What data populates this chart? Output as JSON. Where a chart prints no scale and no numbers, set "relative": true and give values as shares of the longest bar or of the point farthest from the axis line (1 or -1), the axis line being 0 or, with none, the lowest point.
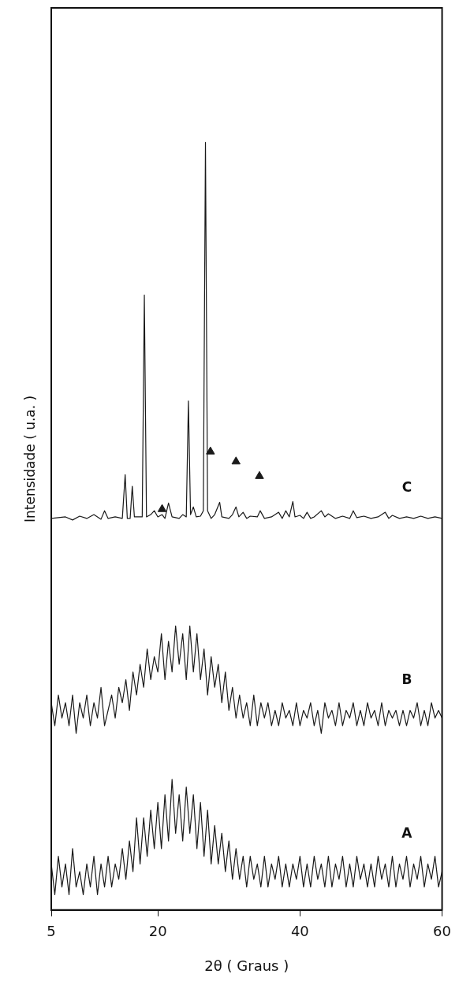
{
  "chart_data": {
    "type": "line",
    "xlabel": "2θ ( Graus )",
    "ylabel": "Intensidade ( u.a. )",
    "relative": true,
    "xlim": [
      5,
      60
    ],
    "xticks": [
      5,
      20,
      40,
      60
    ],
    "grid": false,
    "legend": false,
    "marker": "none",
    "line_style": "solid",
    "x": [
      5,
      5.5,
      6,
      6.5,
      7,
      7.5,
      8,
      8.5,
      9,
      9.5,
      10,
      10.5,
      11,
      11.5,
      12,
      12.5,
      13,
      13.5,
      14,
      14.5,
      15,
      15.5,
      16,
      16.5,
      17,
      17.5,
      18,
      18.5,
      19,
      19.5,
      20,
      20.5,
      21,
      21.5,
      22,
      22.5,
      23,
      23.5,
      24,
      24.5,
      25,
      25.5,
      26,
      26.5,
      27,
      27.5,
      28,
      28.5,
      29,
      29.5,
      30,
      30.5,
      31,
      31.5,
      32,
      32.5,
      33,
      33.5,
      34,
      34.5,
      35,
      35.5,
      36,
      36.5,
      37,
      37.5,
      38,
      38.5,
      39,
      39.5,
      40,
      40.5,
      41,
      41.5,
      42,
      42.5,
      43,
      43.5,
      44,
      44.5,
      45,
      45.5,
      46,
      46.5,
      47,
      47.5,
      48,
      48.5,
      49,
      49.5,
      50,
      50.5,
      51,
      51.5,
      52,
      52.5,
      53,
      53.5,
      54,
      54.5,
      55,
      55.5,
      56,
      56.5,
      57,
      57.5,
      58,
      58.5,
      59,
      59.5,
      60
    ],
    "series": [
      {
        "name": "A",
        "color": "#1a1a1a",
        "values": [
          0.06,
          0.02,
          0.07,
          0.03,
          0.06,
          0.02,
          0.08,
          0.03,
          0.05,
          0.02,
          0.06,
          0.03,
          0.07,
          0.02,
          0.06,
          0.03,
          0.07,
          0.03,
          0.06,
          0.04,
          0.08,
          0.04,
          0.09,
          0.05,
          0.12,
          0.06,
          0.12,
          0.07,
          0.13,
          0.08,
          0.14,
          0.08,
          0.15,
          0.09,
          0.17,
          0.1,
          0.15,
          0.09,
          0.16,
          0.1,
          0.15,
          0.08,
          0.14,
          0.07,
          0.13,
          0.06,
          0.11,
          0.06,
          0.1,
          0.05,
          0.09,
          0.04,
          0.08,
          0.04,
          0.07,
          0.03,
          0.07,
          0.04,
          0.06,
          0.03,
          0.07,
          0.03,
          0.06,
          0.04,
          0.07,
          0.03,
          0.06,
          0.03,
          0.06,
          0.04,
          0.07,
          0.03,
          0.06,
          0.03,
          0.07,
          0.04,
          0.06,
          0.03,
          0.07,
          0.03,
          0.06,
          0.04,
          0.07,
          0.03,
          0.06,
          0.03,
          0.07,
          0.04,
          0.06,
          0.03,
          0.06,
          0.03,
          0.07,
          0.04,
          0.06,
          0.03,
          0.07,
          0.03,
          0.06,
          0.04,
          0.07,
          0.03,
          0.06,
          0.04,
          0.07,
          0.03,
          0.06,
          0.04,
          0.07,
          0.03,
          0.05
        ]
      },
      {
        "name": "B",
        "color": "#1a1a1a",
        "values": [
          0.27,
          0.24,
          0.28,
          0.25,
          0.27,
          0.24,
          0.28,
          0.23,
          0.27,
          0.25,
          0.28,
          0.24,
          0.27,
          0.25,
          0.29,
          0.24,
          0.26,
          0.28,
          0.25,
          0.29,
          0.27,
          0.3,
          0.26,
          0.31,
          0.28,
          0.32,
          0.29,
          0.34,
          0.3,
          0.33,
          0.31,
          0.36,
          0.3,
          0.35,
          0.31,
          0.37,
          0.32,
          0.36,
          0.3,
          0.37,
          0.31,
          0.36,
          0.3,
          0.34,
          0.28,
          0.33,
          0.29,
          0.32,
          0.27,
          0.31,
          0.26,
          0.29,
          0.25,
          0.28,
          0.25,
          0.27,
          0.24,
          0.28,
          0.24,
          0.27,
          0.25,
          0.27,
          0.24,
          0.26,
          0.24,
          0.27,
          0.25,
          0.26,
          0.24,
          0.27,
          0.24,
          0.26,
          0.25,
          0.27,
          0.24,
          0.26,
          0.23,
          0.27,
          0.25,
          0.26,
          0.24,
          0.27,
          0.24,
          0.26,
          0.25,
          0.27,
          0.24,
          0.26,
          0.24,
          0.27,
          0.25,
          0.26,
          0.24,
          0.27,
          0.24,
          0.26,
          0.25,
          0.26,
          0.24,
          0.26,
          0.24,
          0.26,
          0.25,
          0.27,
          0.24,
          0.26,
          0.24,
          0.27,
          0.25,
          0.26,
          0.25
        ]
      },
      {
        "name": "C",
        "color": "#1a1a1a",
        "x": [
          5,
          7,
          8,
          9,
          10,
          11,
          12,
          12.5,
          13,
          14,
          15,
          15.4,
          15.7,
          16.1,
          16.4,
          16.7,
          17.8,
          18.1,
          18.4,
          19,
          19.5,
          20,
          20.6,
          21,
          21.5,
          22,
          23,
          23.5,
          24,
          24.3,
          24.6,
          25,
          25.4,
          26,
          26.4,
          26.7,
          27,
          27.5,
          28,
          28.7,
          29,
          30,
          30.5,
          31,
          31.4,
          32,
          32.5,
          33,
          34,
          34.4,
          35,
          36,
          37,
          37.5,
          38,
          38.5,
          39,
          39.3,
          40,
          40.5,
          41,
          41.5,
          42,
          43,
          43.5,
          44,
          45,
          46,
          47,
          47.5,
          48,
          49,
          50,
          51,
          52,
          52.5,
          53,
          54,
          55,
          56,
          57,
          58,
          59,
          60
        ],
        "values": [
          0.51,
          0.512,
          0.508,
          0.513,
          0.51,
          0.515,
          0.509,
          0.52,
          0.51,
          0.512,
          0.51,
          0.567,
          0.51,
          0.51,
          0.552,
          0.512,
          0.512,
          0.801,
          0.512,
          0.515,
          0.52,
          0.512,
          0.515,
          0.51,
          0.53,
          0.512,
          0.51,
          0.515,
          0.512,
          0.663,
          0.515,
          0.525,
          0.512,
          0.513,
          0.52,
          1.0,
          0.52,
          0.51,
          0.515,
          0.531,
          0.512,
          0.51,
          0.515,
          0.525,
          0.512,
          0.518,
          0.51,
          0.513,
          0.512,
          0.52,
          0.51,
          0.512,
          0.518,
          0.51,
          0.52,
          0.512,
          0.532,
          0.512,
          0.514,
          0.51,
          0.518,
          0.51,
          0.512,
          0.52,
          0.512,
          0.516,
          0.51,
          0.513,
          0.51,
          0.52,
          0.511,
          0.513,
          0.51,
          0.512,
          0.518,
          0.51,
          0.514,
          0.51,
          0.512,
          0.51,
          0.513,
          0.51,
          0.512,
          0.51
        ]
      },
      {
        "type": "scatter",
        "marker": "triangle",
        "color": "#1a1a1a",
        "x": [
          20.6,
          27.4,
          31.0,
          34.3
        ],
        "values": [
          0.522,
          0.597,
          0.584,
          0.565
        ]
      }
    ]
  }
}
